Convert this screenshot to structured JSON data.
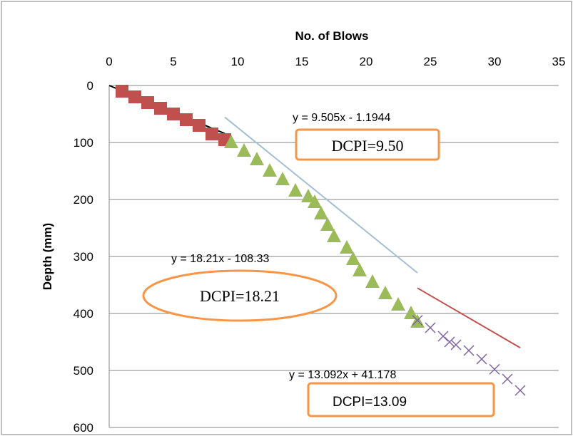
{
  "chart_data": {
    "type": "scatter",
    "title": "",
    "xlabel": "No. of Blows",
    "ylabel": "Depth (mm)",
    "x_axis_position": "top",
    "y_axis_reversed": true,
    "xlim": [
      0,
      35
    ],
    "ylim": [
      0,
      600
    ],
    "x_ticks": [
      0,
      5,
      10,
      15,
      20,
      25,
      30,
      35
    ],
    "y_ticks": [
      0,
      100,
      200,
      300,
      400,
      500,
      600
    ],
    "grid": "horizontal",
    "series": [
      {
        "marker": "square",
        "color": "#c0504d",
        "points": [
          [
            1,
            10
          ],
          [
            2,
            20
          ],
          [
            3,
            30
          ],
          [
            4,
            40
          ],
          [
            5,
            50
          ],
          [
            6,
            60
          ],
          [
            7,
            70
          ],
          [
            8,
            85
          ],
          [
            9,
            95
          ]
        ],
        "trendline": {
          "slope": 9.505,
          "intercept": -1.1944,
          "x_range": [
            0,
            9
          ],
          "color": "#000000"
        }
      },
      {
        "marker": "triangle",
        "color": "#9bbb59",
        "points": [
          [
            9.5,
            100
          ],
          [
            10.5,
            115
          ],
          [
            11.5,
            130
          ],
          [
            12.5,
            150
          ],
          [
            13.5,
            165
          ],
          [
            14.5,
            185
          ],
          [
            15.5,
            195
          ],
          [
            16,
            205
          ],
          [
            16.5,
            225
          ],
          [
            17,
            245
          ],
          [
            17.5,
            265
          ],
          [
            18.5,
            285
          ],
          [
            19,
            305
          ],
          [
            19.5,
            325
          ],
          [
            20.5,
            345
          ],
          [
            21.5,
            365
          ],
          [
            22.5,
            385
          ],
          [
            23.5,
            400
          ],
          [
            24,
            415
          ]
        ],
        "trendline": {
          "slope": 18.21,
          "intercept": -108.33,
          "x_range": [
            9,
            24
          ],
          "color": "#a5bed6"
        }
      },
      {
        "marker": "x",
        "color": "#8064a2",
        "points": [
          [
            24,
            412
          ],
          [
            25,
            425
          ],
          [
            26,
            440
          ],
          [
            26.5,
            450
          ],
          [
            27,
            455
          ],
          [
            28,
            465
          ],
          [
            29,
            480
          ],
          [
            30,
            498
          ],
          [
            31,
            515
          ],
          [
            32,
            535
          ]
        ],
        "trendline": {
          "slope": 13.092,
          "intercept": 41.178,
          "x_range": [
            24,
            32
          ],
          "color": "#c0504d"
        }
      }
    ],
    "annotations": {
      "eq1": "y = 9.505x - 1.1944",
      "dcpi1": "DCPI=9.50",
      "eq2": "y = 18.21x - 108.33",
      "dcpi2": "DCPI=18.21",
      "eq3": "y = 13.092x + 41.178",
      "dcpi3": "DCPI=13.09"
    },
    "colors": {
      "callout": "#f79646",
      "gridline": "#868686",
      "axis": "#868686",
      "frame": "#7f7f7f"
    }
  }
}
